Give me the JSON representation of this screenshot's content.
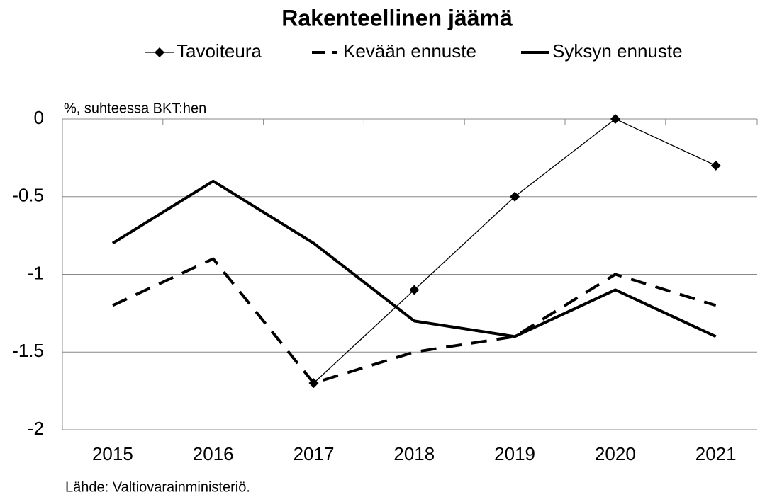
{
  "chart_data": {
    "type": "line",
    "title": "Rakenteellinen jäämä",
    "y_label": "%, suhteessa BKT:hen",
    "source": "Lähde: Valtiovarainministeriö.",
    "categories": [
      "2015",
      "2016",
      "2017",
      "2018",
      "2019",
      "2020",
      "2021"
    ],
    "series": [
      {
        "name": "Tavoiteura",
        "color": "#000000",
        "line_style": "thin",
        "marker": "diamond",
        "values": [
          null,
          null,
          -1.7,
          -1.1,
          -0.5,
          0,
          -0.3
        ]
      },
      {
        "name": "Kevään ennuste",
        "color": "#000000",
        "line_style": "dashed",
        "values": [
          -1.2,
          -0.9,
          -1.7,
          -1.5,
          -1.4,
          -1.0,
          -1.2
        ]
      },
      {
        "name": "Syksyn ennuste",
        "color": "#000000",
        "line_style": "solid",
        "values": [
          -0.8,
          -0.4,
          -0.8,
          -1.3,
          -1.4,
          -1.1,
          -1.4
        ]
      }
    ],
    "ylim": [
      -2,
      0
    ],
    "yticks": [
      0,
      -0.5,
      -1,
      -1.5,
      -2
    ],
    "grid": true,
    "legend": "top"
  }
}
